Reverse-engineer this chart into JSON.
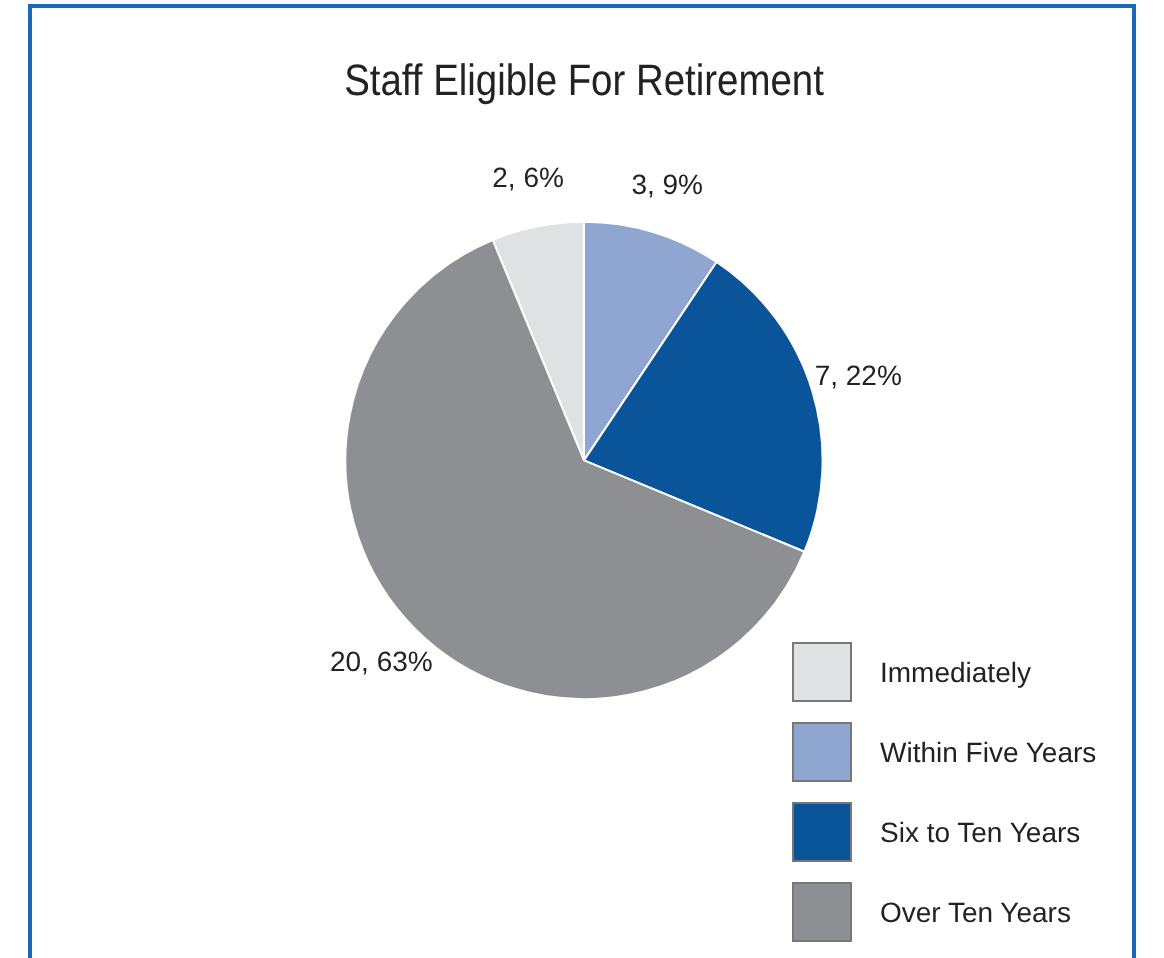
{
  "chart_data": {
    "type": "pie",
    "title": "Staff Eligible For Retirement",
    "categories": [
      "Immediately",
      "Within Five Years",
      "Six to Ten Years",
      "Over Ten Years"
    ],
    "values": [
      2,
      3,
      7,
      20
    ],
    "colors": [
      "#e0e1e3",
      "#8fa7d0",
      "#0a5499",
      "#8e8f93"
    ],
    "value_labels": [
      "2, 6%",
      "3, 9%",
      "7, 22%",
      "20, 63%"
    ],
    "legend": "bottom right"
  }
}
